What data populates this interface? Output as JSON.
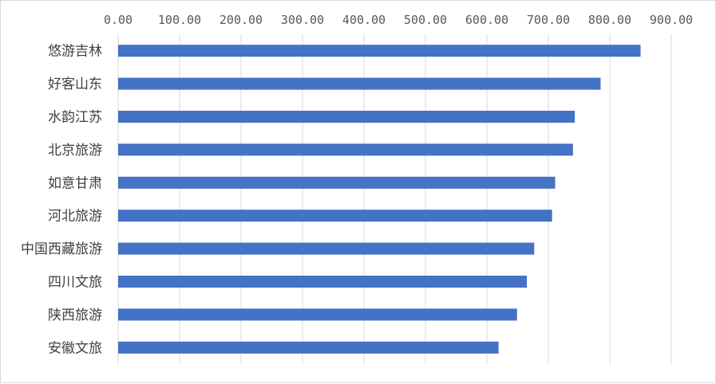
{
  "chart_data": {
    "type": "bar",
    "orientation": "horizontal",
    "categories": [
      "悠游吉林",
      "好客山东",
      "水韵江苏",
      "北京旅游",
      "如意甘肃",
      "河北旅游",
      "中国西藏旅游",
      "四川文旅",
      "陕西旅游",
      "安徽文旅"
    ],
    "values": [
      850,
      785,
      743,
      740,
      711,
      706,
      677,
      665,
      649,
      619
    ],
    "xlim": [
      0,
      900
    ],
    "x_ticks": [
      "0.00",
      "100.00",
      "200.00",
      "300.00",
      "400.00",
      "500.00",
      "600.00",
      "700.00",
      "800.00",
      "900.00"
    ],
    "x_axis_position": "top",
    "grid": true,
    "legend": "none",
    "bar_color": "#4472c4",
    "grid_color": "#d9d9d9"
  }
}
